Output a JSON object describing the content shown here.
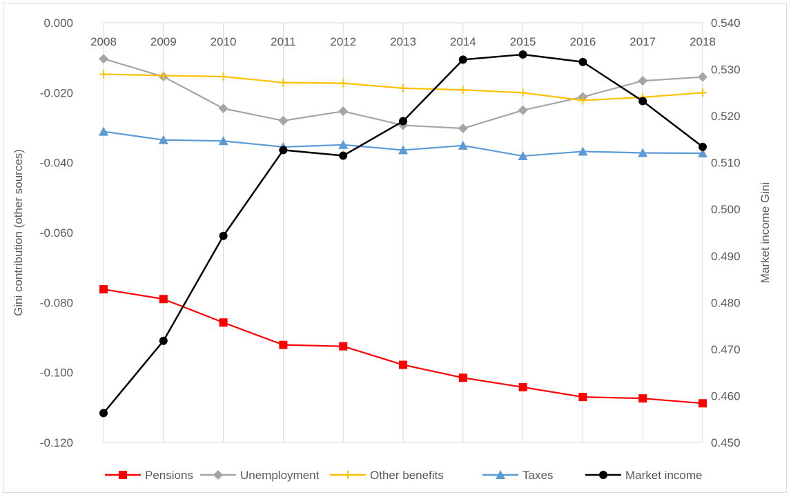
{
  "chart_data": {
    "type": "line",
    "title": "",
    "x": [
      "2008",
      "2009",
      "2010",
      "2011",
      "2012",
      "2013",
      "2014",
      "2015",
      "2016",
      "2017",
      "2018"
    ],
    "ylabel": "Gini contribution (other sources)",
    "y2label": "Market income Gini",
    "ylim": [
      -0.12,
      0.0
    ],
    "y2lim": [
      0.45,
      0.54
    ],
    "yticks": [
      "0.000",
      "-0.020",
      "-0.040",
      "-0.060",
      "-0.080",
      "-0.100",
      "-0.120"
    ],
    "y2ticks": [
      "0.540",
      "0.530",
      "0.520",
      "0.510",
      "0.500",
      "0.490",
      "0.480",
      "0.470",
      "0.460",
      "0.450"
    ],
    "grid": "vertical",
    "legend_position": "bottom",
    "series": [
      {
        "name": "Pensions",
        "axis": "left",
        "color": "#ff0000",
        "marker": "square",
        "values": [
          -0.0762,
          -0.079,
          -0.0857,
          -0.0921,
          -0.0925,
          -0.0978,
          -0.1015,
          -0.1042,
          -0.107,
          -0.1074,
          -0.1088
        ]
      },
      {
        "name": "Unemployment",
        "axis": "left",
        "color": "#a5a5a5",
        "marker": "diamond",
        "values": [
          -0.0103,
          -0.0154,
          -0.0245,
          -0.028,
          -0.0253,
          -0.0293,
          -0.0302,
          -0.025,
          -0.0212,
          -0.0166,
          -0.0155
        ]
      },
      {
        "name": "Other benefits",
        "axis": "left",
        "color": "#ffc000",
        "marker": "plus",
        "values": [
          -0.0147,
          -0.0151,
          -0.0154,
          -0.0171,
          -0.0173,
          -0.0187,
          -0.0192,
          -0.02,
          -0.0222,
          -0.0213,
          -0.02
        ]
      },
      {
        "name": "Taxes",
        "axis": "left",
        "color": "#5b9bd5",
        "marker": "triangle",
        "values": [
          -0.0311,
          -0.0335,
          -0.0338,
          -0.0355,
          -0.0349,
          -0.0364,
          -0.0351,
          -0.0381,
          -0.0368,
          -0.0372,
          -0.0373
        ]
      },
      {
        "name": "Market income",
        "axis": "right",
        "color": "#000000",
        "marker": "circle",
        "values": [
          0.4563,
          0.4718,
          0.4943,
          0.5127,
          0.5115,
          0.5189,
          0.5321,
          0.5332,
          0.5316,
          0.5232,
          0.5134
        ]
      }
    ]
  }
}
